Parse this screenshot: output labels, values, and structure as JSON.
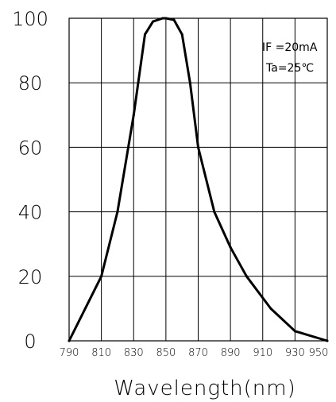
{
  "chart_data": {
    "type": "line",
    "title": "",
    "xlabel": "Wavelength(nm)",
    "ylabel": "",
    "xlim": [
      790,
      950
    ],
    "ylim": [
      0,
      100
    ],
    "x_ticks": [
      790,
      810,
      830,
      850,
      870,
      890,
      910,
      930,
      950
    ],
    "y_ticks": [
      0,
      20,
      40,
      60,
      80,
      100
    ],
    "grid": true,
    "legend": null,
    "annotations": [
      "IF =20mA",
      "Ta=25℃"
    ],
    "series": [
      {
        "x": [
          790,
          810,
          820,
          830,
          837,
          842,
          848,
          850,
          855,
          860,
          865,
          870,
          880,
          890,
          900,
          915,
          930,
          950
        ],
        "y": [
          0,
          20,
          40,
          70,
          95,
          99,
          100,
          100,
          99.5,
          95,
          80,
          60,
          40,
          29,
          20,
          10,
          3,
          0
        ]
      }
    ]
  }
}
